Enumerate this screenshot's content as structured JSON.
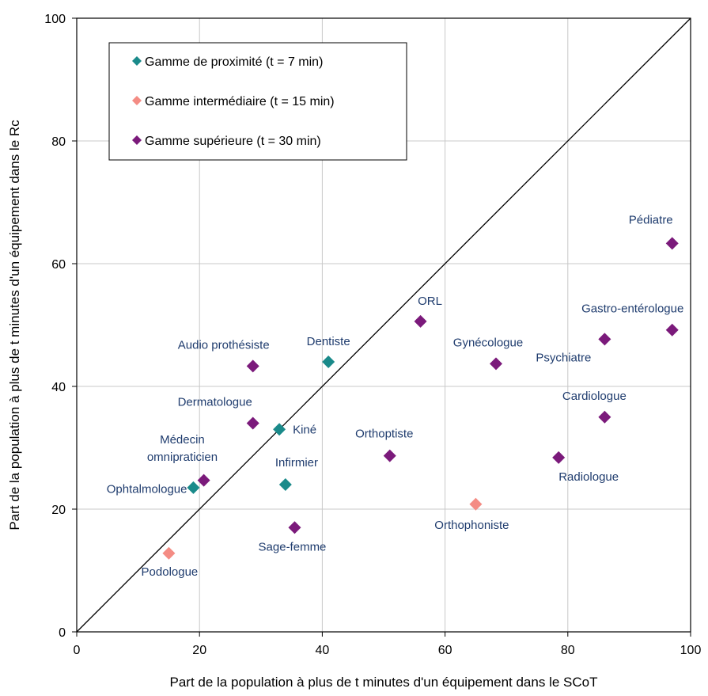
{
  "chart_data": {
    "type": "scatter",
    "xlabel": "Part de la population à plus de t minutes d'un équipement dans le SCoT",
    "ylabel": "Part de la population à plus de t minutes d'un équipement dans le Rc",
    "xlim": [
      0,
      100
    ],
    "ylim": [
      0,
      100
    ],
    "xticks": [
      "0",
      "20",
      "40",
      "60",
      "80",
      "100"
    ],
    "yticks": [
      "0",
      "20",
      "40",
      "60",
      "80",
      "100"
    ],
    "grid": true,
    "diagonal_line": true,
    "legend_position": "top-left",
    "series": [
      {
        "name": "Gamme de proximité (t = 7 min)",
        "color": "#1a8a8a",
        "points": [
          {
            "label": "Dentiste",
            "x": 41,
            "y": 44
          },
          {
            "label": "Kiné",
            "x": 33,
            "y": 33
          },
          {
            "label": "Infirmier",
            "x": 34,
            "y": 24
          },
          {
            "label": "Médecin omnipraticien",
            "x": 19,
            "y": 23.5
          }
        ]
      },
      {
        "name": "Gamme intermédiaire (t = 15 min)",
        "color": "#f48c84",
        "points": [
          {
            "label": "Orthophoniste",
            "x": 65,
            "y": 20.8
          },
          {
            "label": "Podologue",
            "x": 15,
            "y": 12.8
          }
        ]
      },
      {
        "name": "Gamme supérieure (t = 30 min)",
        "color": "#7b1a7b",
        "points": [
          {
            "label": "Pédiatre",
            "x": 97,
            "y": 63.3
          },
          {
            "label": "Gastro-entérologue",
            "x": 97,
            "y": 49.2
          },
          {
            "label": "Psychiatre",
            "x": 86,
            "y": 47.7
          },
          {
            "label": "Cardiologue",
            "x": 86,
            "y": 35
          },
          {
            "label": "Radiologue",
            "x": 78.5,
            "y": 28.4
          },
          {
            "label": "ORL",
            "x": 56,
            "y": 50.6
          },
          {
            "label": "Gynécologue",
            "x": 68.3,
            "y": 43.7
          },
          {
            "label": "Orthoptiste",
            "x": 51,
            "y": 28.7
          },
          {
            "label": "Sage-femme",
            "x": 35.5,
            "y": 17
          },
          {
            "label": "Audio prothésiste",
            "x": 28.7,
            "y": 43.3
          },
          {
            "label": "Dermatologue",
            "x": 28.7,
            "y": 34
          },
          {
            "label": "Ophtalmologue",
            "x": 20.7,
            "y": 24.7
          }
        ]
      }
    ]
  }
}
